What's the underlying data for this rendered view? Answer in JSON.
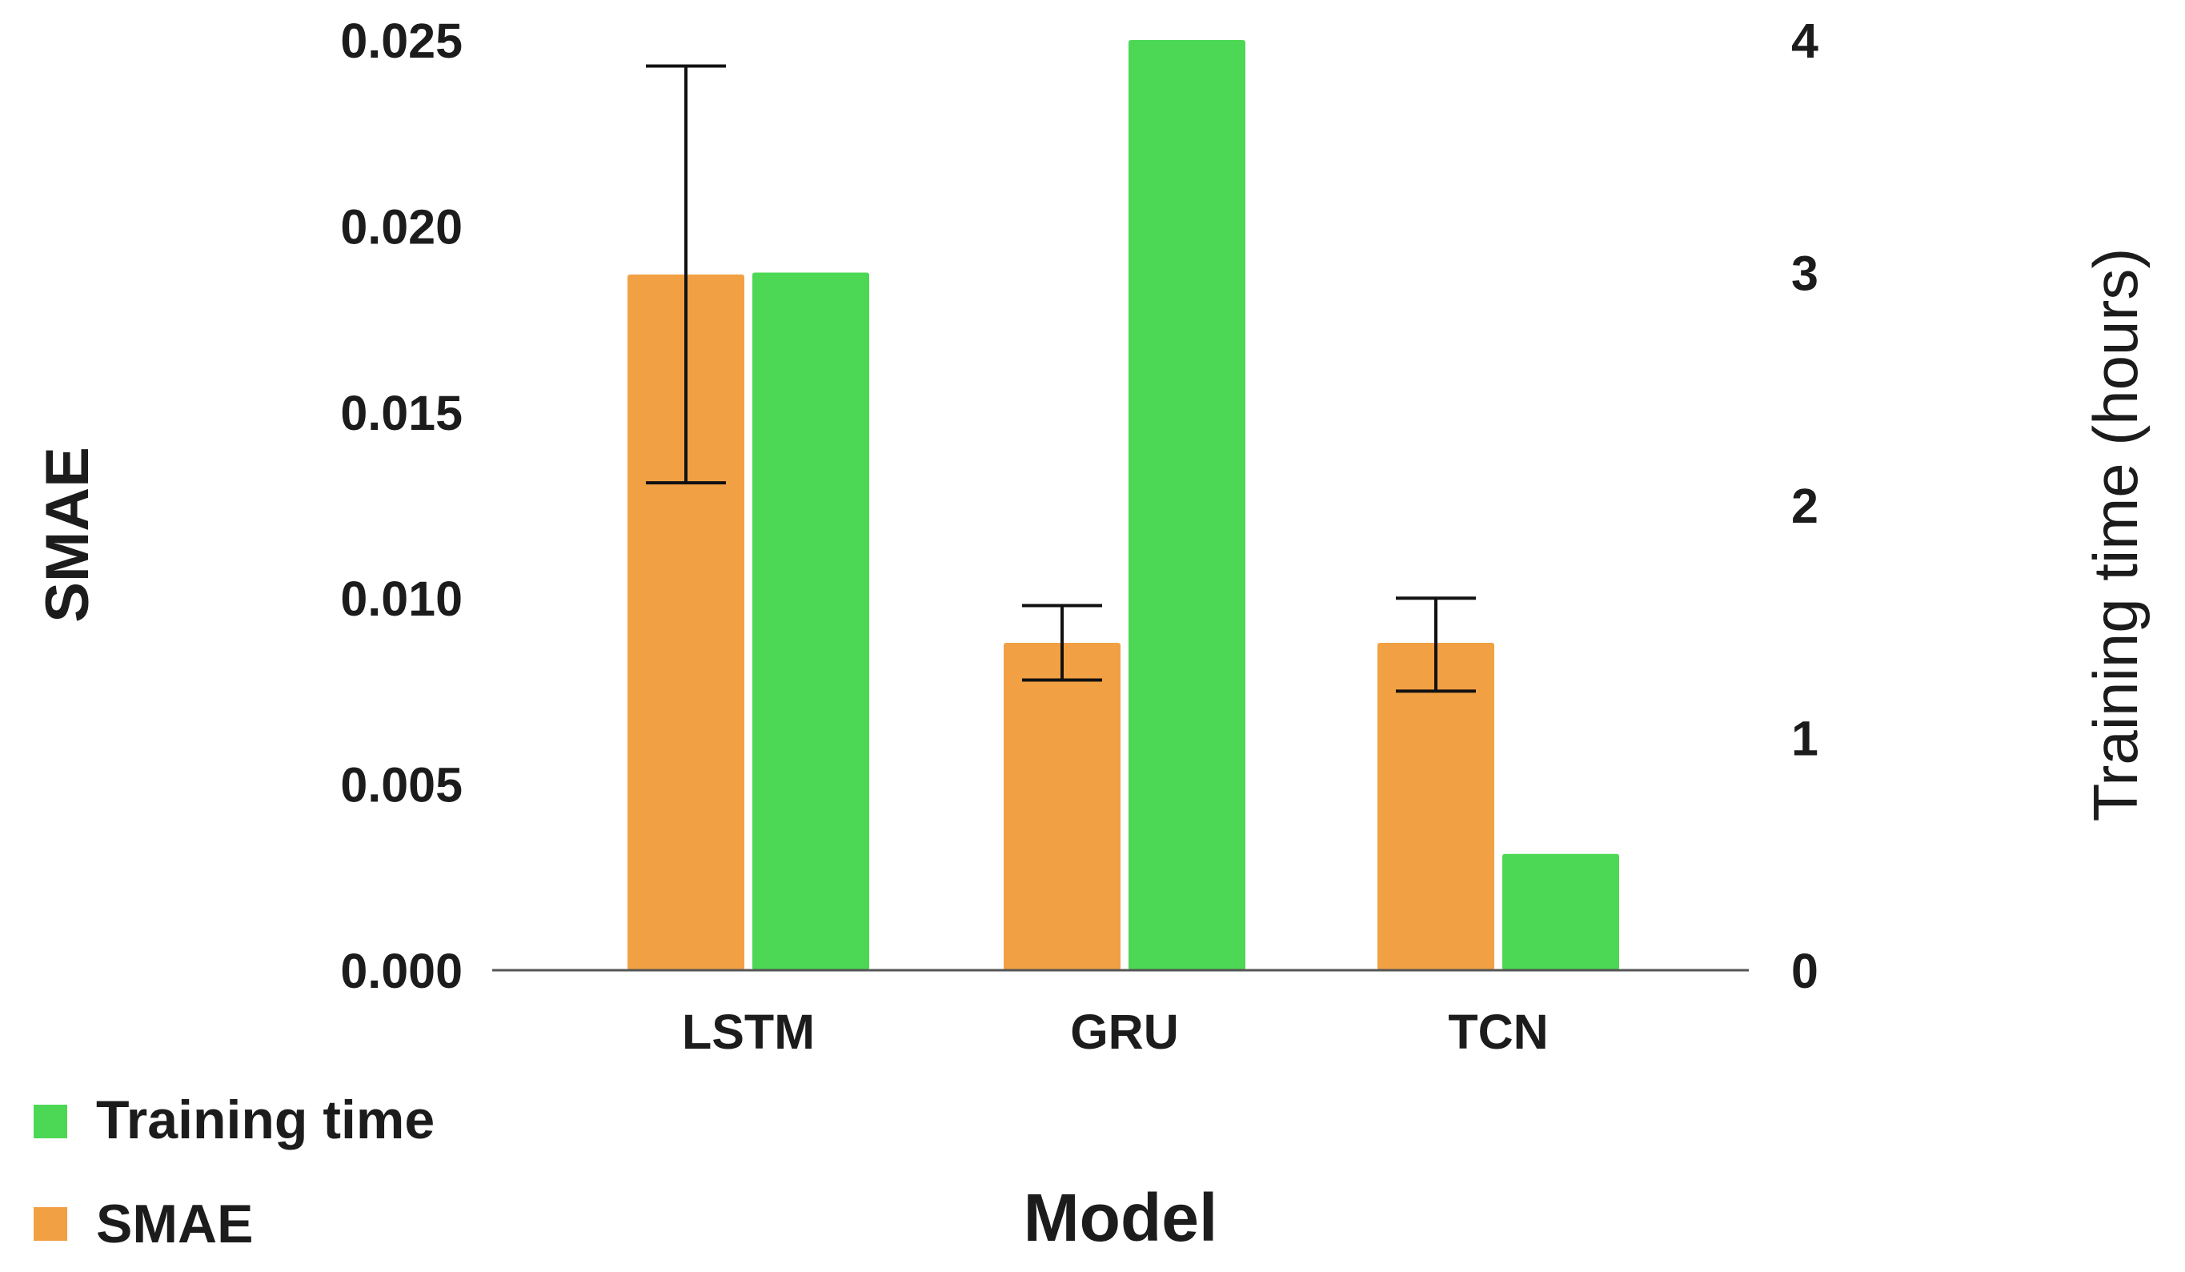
{
  "chart_data": {
    "type": "bar",
    "title": "",
    "xlabel": "Model",
    "ylabel": "SMAE",
    "y2label": "Training time (hours)",
    "categories": [
      "LSTM",
      "GRU",
      "TCN"
    ],
    "series": [
      {
        "name": "SMAE",
        "axis": "left",
        "color": "#f2a044",
        "values": [
          0.0187,
          0.0088,
          0.0088
        ],
        "error_low": [
          0.0131,
          0.0078,
          0.0075
        ],
        "error_high": [
          0.0243,
          0.0098,
          0.01
        ]
      },
      {
        "name": "Training time",
        "axis": "right",
        "color": "#4cd854",
        "values": [
          3.0,
          4.0,
          0.5
        ]
      }
    ],
    "ylim": [
      0,
      0.025
    ],
    "y_ticks": [
      "0.000",
      "0.005",
      "0.010",
      "0.015",
      "0.020",
      "0.025"
    ],
    "y2lim": [
      0,
      4
    ],
    "y2_ticks": [
      "0",
      "1",
      "2",
      "3",
      "4"
    ],
    "legend_position": "bottom-left",
    "legend": [
      "Training time",
      "SMAE"
    ],
    "grid": false
  }
}
